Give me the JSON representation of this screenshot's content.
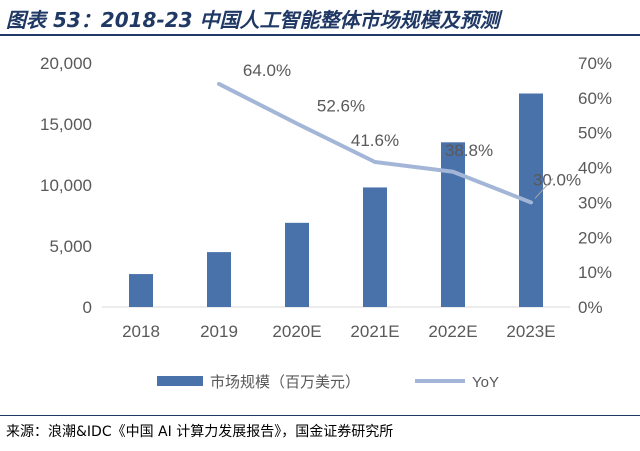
{
  "header": {
    "title": "图表 53：2018-23 中国人工智能整体市场规模及预测"
  },
  "footer": {
    "source": "来源：浪潮&IDC《中国 AI 计算力发展报告》，国金证券研究所"
  },
  "chart_data": {
    "type": "bar",
    "title": "图表 53：2018-23 中国人工智能整体市场规模及预测",
    "categories": [
      "2018",
      "2019",
      "2020E",
      "2021E",
      "2022E",
      "2023E"
    ],
    "series": [
      {
        "name": "市场规模（百万美元）",
        "type": "bar",
        "axis": "left",
        "color": "#4a72aa",
        "values": [
          2700,
          4500,
          6900,
          9800,
          13500,
          17500
        ]
      },
      {
        "name": "YoY",
        "type": "line",
        "axis": "right",
        "color": "#a3b6d8",
        "values": [
          null,
          64.0,
          52.6,
          41.6,
          38.8,
          30.0
        ],
        "labels": [
          "",
          "64.0%",
          "52.6%",
          "41.6%",
          "38.8%",
          "30.0%"
        ]
      }
    ],
    "y_left": {
      "range": [
        0,
        20000
      ],
      "ticks": [
        0,
        5000,
        10000,
        15000,
        20000
      ],
      "tick_labels": [
        "0",
        "5,000",
        "10,000",
        "15,000",
        "20,000"
      ]
    },
    "y_right": {
      "range": [
        0,
        70
      ],
      "ticks": [
        0,
        10,
        20,
        30,
        40,
        50,
        60,
        70
      ],
      "tick_labels": [
        "0%",
        "10%",
        "20%",
        "30%",
        "40%",
        "50%",
        "60%",
        "70%"
      ]
    },
    "grid": false,
    "legend_position": "bottom"
  }
}
